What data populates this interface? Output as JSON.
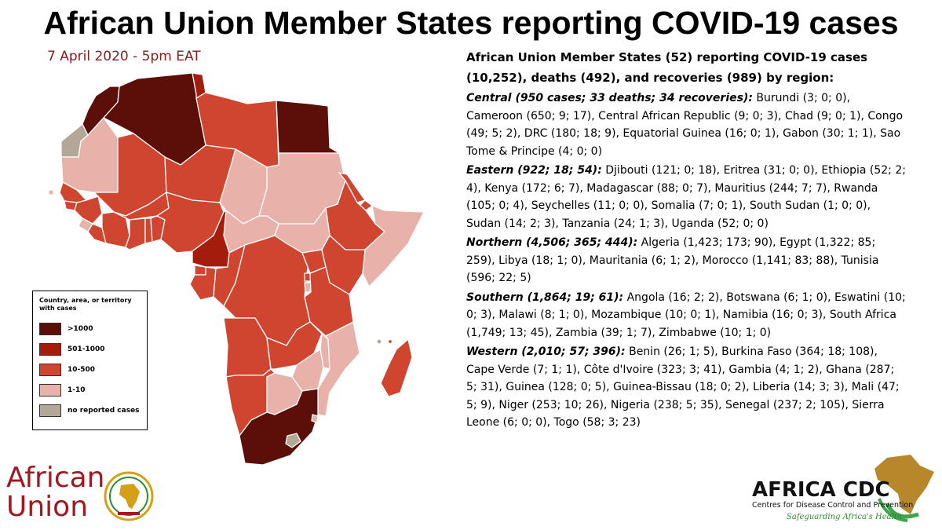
{
  "title": "African Union Member States reporting COVID-19 cases",
  "date": "7 April 2020 - 5pm EAT",
  "summary": {
    "heading_line1": "African Union Member States (52) reporting COVID-19 cases",
    "heading_line2": "(10,252), deaths (492), and recoveries (989) by region:",
    "regions": [
      {
        "label": "Central (950 cases; 33 deaths; 34 recoveries):",
        "text": " Burundi (3; 0; 0), Cameroon (650; 9; 17), Central African Republic (9; 0; 3), Chad (9; 0; 1), Congo (49; 5; 2), DRC (180; 18; 9), Equatorial Guinea (16; 0; 1), Gabon (30; 1; 1), Sao Tome & Principe (4; 0; 0)"
      },
      {
        "label": "Eastern (922; 18; 54):",
        "text": " Djibouti (121; 0; 18), Eritrea (31; 0; 0), Ethiopia (52; 2; 4), Kenya (172; 6; 7), Madagascar (88; 0; 7), Mauritius (244; 7; 7), Rwanda (105; 0; 4), Seychelles (11; 0; 0), Somalia (7; 0; 1), South Sudan (1; 0; 0), Sudan (14; 2; 3), Tanzania (24; 1; 3), Uganda (52; 0; 0)"
      },
      {
        "label": "Northern (4,506; 365; 444):",
        "text": " Algeria (1,423; 173; 90), Egypt (1,322; 85; 259), Libya (18; 1; 0), Mauritania (6; 1; 2), Morocco (1,141; 83; 88), Tunisia (596; 22; 5)"
      },
      {
        "label": "Southern (1,864; 19; 61):",
        "text": " Angola (16; 2; 2), Botswana (6; 1; 0), Eswatini (10; 0; 3), Malawi (8; 1; 0), Mozambique (10; 0; 1), Namibia (16; 0; 3), South Africa (1,749; 13; 45), Zambia (39; 1; 7), Zimbabwe (10; 1; 0)"
      },
      {
        "label": "Western (2,010; 57; 396):",
        "text": " Benin (26; 1; 5), Burkina Faso (364; 18; 108), Cape Verde (7; 1; 1), Côte d'Ivoire (323; 3; 41), Gambia (4; 1; 2), Ghana (287; 5; 31), Guinea (128; 0; 5), Guinea-Bissau (18; 0; 2), Liberia (14; 3; 3), Mali (47; 5; 9), Niger (253; 10; 26), Nigeria (238; 5; 35), Senegal (237; 2; 105), Sierra Leone (6; 0; 0), Togo (58; 3; 23)"
      }
    ]
  },
  "legend": {
    "title": "Country, area, or territory with cases",
    "items": [
      {
        "label": ">1000",
        "color": "#5c0f08"
      },
      {
        "label": "501-1000",
        "color": "#a41c0c"
      },
      {
        "label": "10-500",
        "color": "#cf4530"
      },
      {
        "label": "1-10",
        "color": "#e8b2aa"
      },
      {
        "label": "no reported cases",
        "color": "#b3a797"
      }
    ]
  },
  "logos": {
    "au_line1": "African",
    "au_line2": "Union",
    "cdc_name": "AFRICA CDC",
    "cdc_sub": "Centres for Disease Control and Prevention",
    "cdc_tag": "Safeguarding Africa's Health"
  }
}
